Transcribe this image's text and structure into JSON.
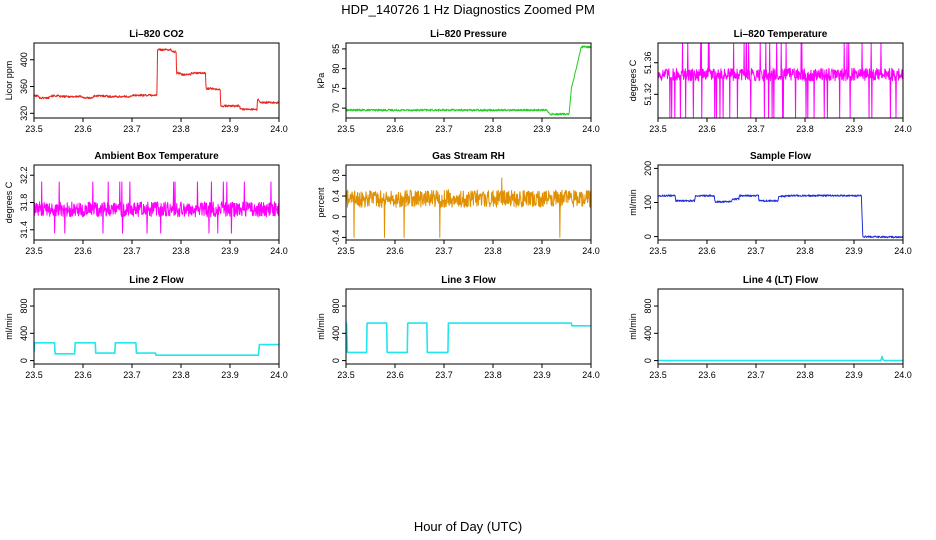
{
  "figure": {
    "title": "HDP_140726  1 Hz Diagnostics Zoomed PM",
    "xlabel": "Hour of Day (UTC)"
  },
  "chart_data": [
    {
      "type": "line",
      "title": "Li–820 CO2",
      "ylabel": "Licor ppm",
      "color": "#e8251c",
      "noise": 1.5,
      "xlim": [
        23.5,
        24.0
      ],
      "ylim": [
        313,
        425
      ],
      "xticks": [
        23.5,
        23.6,
        23.7,
        23.8,
        23.9,
        24.0
      ],
      "yticks": [
        320,
        360,
        400
      ],
      "series": [
        {
          "x": [
            23.5,
            23.51,
            23.511,
            23.53,
            23.531,
            23.55,
            23.551,
            23.6,
            23.601,
            23.62,
            23.621,
            23.65,
            23.651,
            23.7,
            23.701,
            23.75,
            23.751,
            23.752,
            23.78,
            23.781,
            23.79,
            23.791,
            23.8,
            23.801,
            23.82,
            23.821,
            23.85,
            23.851,
            23.87,
            23.871,
            23.88,
            23.881,
            23.92,
            23.921,
            23.955,
            23.956,
            23.96,
            23.961,
            24.0
          ],
          "y": [
            346,
            346,
            343,
            343,
            346,
            346,
            345,
            345,
            343,
            343,
            346,
            346,
            345,
            345,
            347,
            347,
            347,
            415,
            415,
            412,
            412,
            380,
            380,
            378,
            378,
            380,
            380,
            357,
            357,
            356,
            356,
            331,
            331,
            326,
            326,
            340,
            340,
            336,
            336
          ]
        }
      ]
    },
    {
      "type": "line",
      "title": "Li–820 Pressure",
      "ylabel": "kPa",
      "color": "#22cc22",
      "noise": 0.25,
      "xlim": [
        23.5,
        24.0
      ],
      "ylim": [
        67.5,
        86.5
      ],
      "xticks": [
        23.5,
        23.6,
        23.7,
        23.8,
        23.9,
        24.0
      ],
      "yticks": [
        70,
        75,
        80,
        85
      ],
      "series": [
        {
          "x": [
            23.5,
            23.91,
            23.915,
            23.955,
            23.956,
            23.96,
            23.97,
            23.98,
            24.0
          ],
          "y": [
            69.5,
            69.5,
            68.5,
            68.5,
            69.5,
            75,
            80,
            85.5,
            85.5
          ]
        }
      ]
    },
    {
      "type": "line",
      "title": "Li–820 Temperature",
      "ylabel": "degrees C",
      "color": "#ff00ff",
      "noise": 0.008,
      "spikes": {
        "count": 60,
        "high": 51.385,
        "low": 51.29,
        "seed": 7
      },
      "xlim": [
        23.5,
        24.0
      ],
      "ylim": [
        51.29,
        51.385
      ],
      "xticks": [
        23.5,
        23.6,
        23.7,
        23.8,
        23.9,
        24.0
      ],
      "yticks": [
        51.32,
        51.36
      ],
      "series": [
        {
          "x": [
            23.5,
            24.0
          ],
          "y": [
            51.345,
            51.345
          ]
        }
      ]
    },
    {
      "type": "line",
      "title": "Ambient Box Temperature",
      "ylabel": "degrees C",
      "color": "#ff00ff",
      "noise": 0.11,
      "spikes": {
        "count": 25,
        "high": 32.1,
        "low": 31.35,
        "seed": 11
      },
      "xlim": [
        23.5,
        24.0
      ],
      "ylim": [
        31.25,
        32.35
      ],
      "xticks": [
        23.5,
        23.6,
        23.7,
        23.8,
        23.9,
        24.0
      ],
      "yticks": [
        31.4,
        31.8,
        32.2
      ],
      "series": [
        {
          "x": [
            23.5,
            24.0
          ],
          "y": [
            31.7,
            31.7
          ]
        }
      ]
    },
    {
      "type": "line",
      "title": "Gas Stream RH",
      "ylabel": "percent",
      "color": "#e09000",
      "noise": 0.17,
      "spikes": {
        "count": 6,
        "high": 0.75,
        "low": -0.4,
        "seed": 3
      },
      "xlim": [
        23.5,
        24.0
      ],
      "ylim": [
        -0.45,
        1.0
      ],
      "xticks": [
        23.5,
        23.6,
        23.7,
        23.8,
        23.9,
        24.0
      ],
      "yticks": [
        -0.4,
        0.0,
        0.4,
        0.8
      ],
      "series": [
        {
          "x": [
            23.5,
            24.0
          ],
          "y": [
            0.35,
            0.35
          ]
        }
      ]
    },
    {
      "type": "line",
      "title": "Sample Flow",
      "ylabel": "ml/min",
      "color": "#1f2fd8",
      "noise": 2.5,
      "xlim": [
        23.5,
        24.0
      ],
      "ylim": [
        -10,
        210
      ],
      "xticks": [
        23.5,
        23.6,
        23.7,
        23.8,
        23.9,
        24.0
      ],
      "yticks": [
        0,
        100,
        200
      ],
      "series": [
        {
          "x": [
            23.5,
            23.535,
            23.536,
            23.575,
            23.576,
            23.615,
            23.616,
            23.65,
            23.651,
            23.665,
            23.666,
            23.705,
            23.706,
            23.745,
            23.746,
            23.76,
            23.761,
            23.915,
            23.918,
            24.0
          ],
          "y": [
            120,
            120,
            105,
            105,
            120,
            120,
            102,
            102,
            110,
            110,
            120,
            120,
            105,
            105,
            118,
            118,
            120,
            120,
            0,
            -2
          ]
        }
      ]
    },
    {
      "type": "line",
      "title": "Line 2 Flow",
      "ylabel": "ml/min",
      "color": "#22e6ee",
      "noise": 0,
      "xlim": [
        23.5,
        24.0
      ],
      "ylim": [
        -50,
        1050
      ],
      "xticks": [
        23.5,
        23.6,
        23.7,
        23.8,
        23.9,
        24.0
      ],
      "yticks": [
        0,
        400,
        800
      ],
      "series": [
        {
          "x": [
            23.5,
            23.501,
            23.542,
            23.543,
            23.583,
            23.584,
            23.625,
            23.626,
            23.665,
            23.666,
            23.708,
            23.709,
            23.748,
            23.749,
            23.958,
            23.96,
            24.0
          ],
          "y": [
            120,
            260,
            260,
            100,
            100,
            260,
            260,
            110,
            110,
            260,
            260,
            110,
            110,
            80,
            80,
            235,
            235
          ]
        }
      ]
    },
    {
      "type": "line",
      "title": "Line 3 Flow",
      "ylabel": "ml/min",
      "color": "#22e6ee",
      "noise": 0,
      "xlim": [
        23.5,
        24.0
      ],
      "ylim": [
        -50,
        1050
      ],
      "xticks": [
        23.5,
        23.6,
        23.7,
        23.8,
        23.9,
        24.0
      ],
      "yticks": [
        0,
        400,
        800
      ],
      "series": [
        {
          "x": [
            23.5,
            23.501,
            23.503,
            23.542,
            23.543,
            23.583,
            23.584,
            23.625,
            23.626,
            23.665,
            23.666,
            23.708,
            23.709,
            23.96,
            23.961,
            24.0
          ],
          "y": [
            130,
            550,
            120,
            120,
            550,
            550,
            120,
            120,
            550,
            550,
            120,
            120,
            550,
            550,
            510,
            510
          ]
        }
      ]
    },
    {
      "type": "line",
      "title": "Line 4 (LT) Flow",
      "ylabel": "ml/min",
      "color": "#22e6ee",
      "noise": 0,
      "xlim": [
        23.5,
        24.0
      ],
      "ylim": [
        -50,
        1050
      ],
      "xticks": [
        23.5,
        23.6,
        23.7,
        23.8,
        23.9,
        24.0
      ],
      "yticks": [
        0,
        400,
        800
      ],
      "series": [
        {
          "x": [
            23.5,
            23.955,
            23.957,
            23.959,
            23.961,
            24.0
          ],
          "y": [
            0,
            0,
            60,
            20,
            0,
            0
          ]
        }
      ]
    }
  ]
}
